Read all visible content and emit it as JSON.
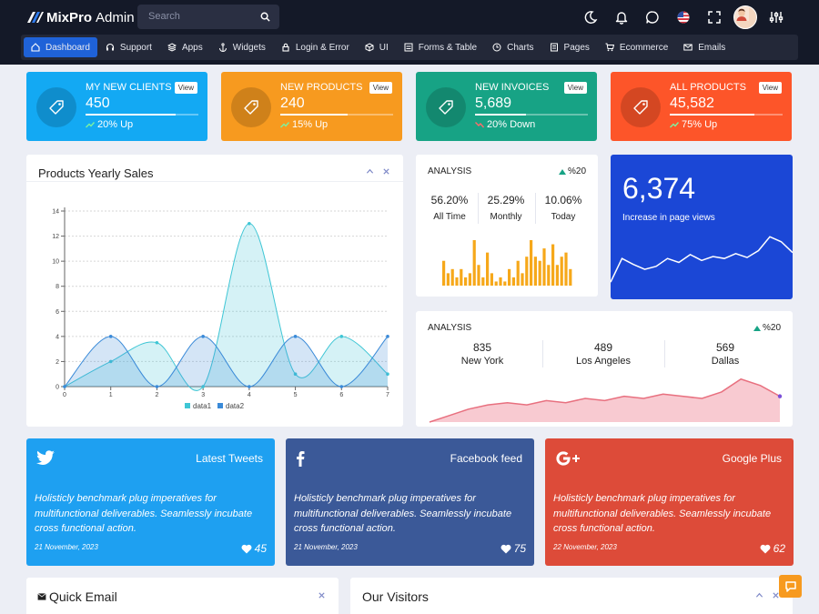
{
  "app": {
    "brand_bold": "MixPro",
    "brand_light": "Admin"
  },
  "search": {
    "placeholder": "Search"
  },
  "top_icons": [
    "moon-icon",
    "bell-icon",
    "chat-icon",
    "flag-icon",
    "fullscreen-icon",
    "avatar",
    "sliders-icon"
  ],
  "nav": [
    {
      "label": "Dashboard",
      "icon": "home-icon",
      "active": true
    },
    {
      "label": "Support",
      "icon": "headset-icon"
    },
    {
      "label": "Apps",
      "icon": "stack-icon"
    },
    {
      "label": "Widgets",
      "icon": "anchor-icon"
    },
    {
      "label": "Login & Error",
      "icon": "lock-icon"
    },
    {
      "label": "UI",
      "icon": "cube-icon"
    },
    {
      "label": "Forms & Table",
      "icon": "form-icon"
    },
    {
      "label": "Charts",
      "icon": "clock-icon"
    },
    {
      "label": "Pages",
      "icon": "pages-icon"
    },
    {
      "label": "Ecommerce",
      "icon": "cart-icon"
    },
    {
      "label": "Emails",
      "icon": "mail-icon"
    }
  ],
  "stats": [
    {
      "label": "My New Clients",
      "value": "450",
      "change": "20% Up",
      "direction": "up",
      "view": "View",
      "progress": 0.8,
      "color": "#13a9f3"
    },
    {
      "label": "New Products",
      "value": "240",
      "change": "15% Up",
      "direction": "up",
      "view": "View",
      "progress": 0.6,
      "color": "#f79a1f"
    },
    {
      "label": "New Invoices",
      "value": "5,689",
      "change": "20% Down",
      "direction": "down",
      "view": "View",
      "progress": 0.45,
      "color": "#17a385"
    },
    {
      "label": "All Products",
      "value": "45,582",
      "change": "75% Up",
      "direction": "up",
      "view": "View",
      "progress": 0.75,
      "color": "#fd5529"
    }
  ],
  "yearly_sales": {
    "title": "Products Yearly Sales",
    "chart_data": {
      "type": "area",
      "x": [
        0,
        1,
        2,
        3,
        4,
        5,
        6,
        7
      ],
      "ylim": [
        0,
        14
      ],
      "yticks": [
        0,
        2,
        4,
        6,
        8,
        10,
        12,
        14
      ],
      "series": [
        {
          "name": "data1",
          "values": [
            0,
            2,
            3.5,
            0,
            13,
            1,
            4,
            1
          ],
          "color": "#3fc6d5"
        },
        {
          "name": "data2",
          "values": [
            0,
            4,
            0,
            4,
            0,
            4,
            0,
            4
          ],
          "color": "#3a8ad8"
        }
      ],
      "legend": "bottom",
      "grid": true
    }
  },
  "analysis1": {
    "title": "ANALYSIS",
    "badge": "%20",
    "metrics": [
      {
        "value": "56.20%",
        "label": "All Time"
      },
      {
        "value": "25.29%",
        "label": "Monthly"
      },
      {
        "value": "10.06%",
        "label": "Today"
      }
    ],
    "chart_data": {
      "type": "bar",
      "values": [
        6,
        3,
        4,
        2,
        4,
        2,
        3,
        11,
        5,
        2,
        8,
        3,
        1,
        2,
        1,
        4,
        2,
        6,
        3,
        7,
        11,
        7,
        6,
        9,
        5,
        10,
        5,
        7,
        8,
        4
      ],
      "color": "#f6a81a"
    }
  },
  "page_views": {
    "value": "6,374",
    "label": "Increase in page views",
    "chart_data": {
      "type": "line",
      "values": [
        1.0,
        3.4,
        2.8,
        2.3,
        2.6,
        3.4,
        3.0,
        3.8,
        3.2,
        3.6,
        3.4,
        3.9,
        3.5,
        4.2,
        5.6,
        5.1,
        4.0
      ],
      "color": "#ffffff"
    }
  },
  "analysis2": {
    "title": "ANALYSIS",
    "badge": "%20",
    "cities": [
      {
        "value": "835",
        "label": "New York"
      },
      {
        "value": "489",
        "label": "Los Angeles"
      },
      {
        "value": "569",
        "label": "Dallas"
      }
    ],
    "chart_data": {
      "type": "area",
      "values": [
        0,
        3,
        6,
        8,
        9,
        8,
        10,
        9,
        11,
        10,
        12,
        11,
        13,
        12,
        11,
        14,
        20,
        17,
        12
      ],
      "color": "#f08a9a",
      "end_point_color": "#7b4fd8"
    }
  },
  "social": [
    {
      "title": "Latest Tweets",
      "icon": "twitter-icon",
      "text": "Holisticly benchmark plug imperatives for multifunctional deliverables. Seamlessly incubate cross functional action.",
      "date": "21 November, 2023",
      "likes": "45",
      "color": "#1ea0f1"
    },
    {
      "title": "Facebook feed",
      "icon": "facebook-icon",
      "text": "Holisticly benchmark plug imperatives for multifunctional deliverables. Seamlessly incubate cross functional action.",
      "date": "21 November, 2023",
      "likes": "75",
      "color": "#3b5998"
    },
    {
      "title": "Google Plus",
      "icon": "google-plus-icon",
      "text": "Holisticly benchmark plug imperatives for multifunctional deliverables. Seamlessly incubate cross functional action.",
      "date": "22 November, 2023",
      "likes": "62",
      "color": "#dd4b39"
    }
  ],
  "quick_email": {
    "title": "Quick Email"
  },
  "visitors": {
    "title": "Our Visitors"
  }
}
